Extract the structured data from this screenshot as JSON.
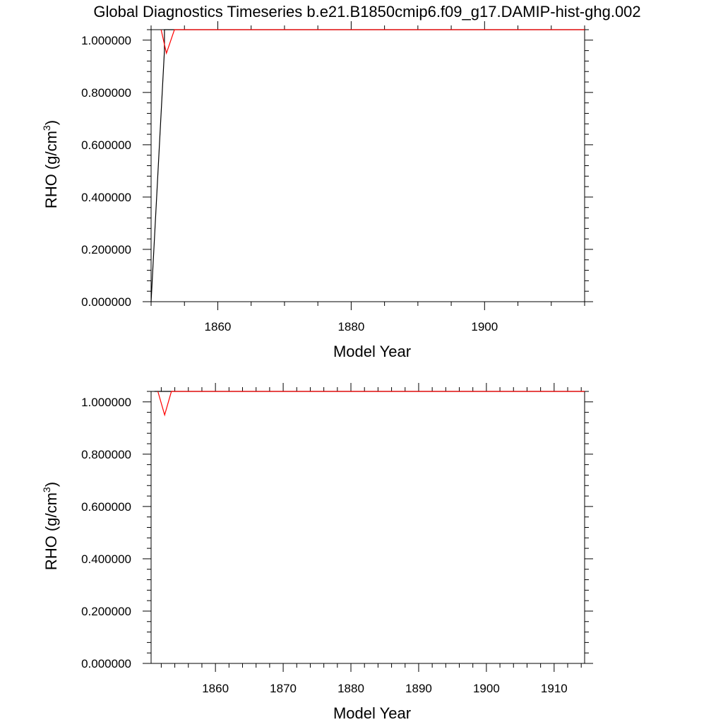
{
  "title": "Global Diagnostics Timeseries b.e21.B1850cmip6.f09_g17.DAMIP-hist-ghg.002",
  "colors": {
    "black_series": "#000000",
    "red_series": "#ff0000",
    "frame": "#000000"
  },
  "chart_data": [
    {
      "type": "line",
      "xlabel": "Model Year",
      "ylabel": "RHO (g/cm",
      "ylabel_sup": "3",
      "ylabel_close": ")",
      "xlim": [
        1850,
        1915
      ],
      "ylim": [
        0.0,
        1.04
      ],
      "x_major_ticks": [
        1860,
        1880,
        1900
      ],
      "x_major_labels": [
        "1860",
        "1880",
        "1900"
      ],
      "x_minor_step": 5,
      "y_major_ticks": [
        0.0,
        0.2,
        0.4,
        0.6,
        0.8,
        1.0
      ],
      "y_major_labels": [
        "0.000000",
        "0.200000",
        "0.400000",
        "0.600000",
        "0.800000",
        "1.000000"
      ],
      "y_minor_step": 0.04,
      "grid": false,
      "series": [
        {
          "color": "#000000",
          "x": [
            1850,
            1852,
            1852,
            1915
          ],
          "y": [
            0.0,
            0.96,
            1.04,
            1.04
          ]
        },
        {
          "color": "#ff0000",
          "x": [
            1851.5,
            1852.3,
            1853.5,
            1915
          ],
          "y": [
            1.04,
            0.95,
            1.04,
            1.04
          ]
        }
      ]
    },
    {
      "type": "line",
      "xlabel": "Model Year",
      "ylabel": "RHO (g/cm",
      "ylabel_sup": "3",
      "ylabel_close": ")",
      "xlim": [
        1850.5,
        1914.5
      ],
      "ylim": [
        0.0,
        1.04
      ],
      "x_major_ticks": [
        1860,
        1870,
        1880,
        1890,
        1900,
        1910
      ],
      "x_major_labels": [
        "1860",
        "1870",
        "1880",
        "1890",
        "1900",
        "1910"
      ],
      "x_minor_step": 2,
      "y_major_ticks": [
        0.0,
        0.2,
        0.4,
        0.6,
        0.8,
        1.0
      ],
      "y_major_labels": [
        "0.000000",
        "0.200000",
        "0.400000",
        "0.600000",
        "0.800000",
        "1.000000"
      ],
      "y_minor_step": 0.04,
      "grid": false,
      "series": [
        {
          "color": "#000000",
          "x": [
            1851,
            1914.5
          ],
          "y": [
            1.04,
            1.04
          ]
        },
        {
          "color": "#ff0000",
          "x": [
            1851.5,
            1852.5,
            1853.5,
            1914.5
          ],
          "y": [
            1.04,
            0.95,
            1.04,
            1.04
          ]
        }
      ]
    }
  ]
}
